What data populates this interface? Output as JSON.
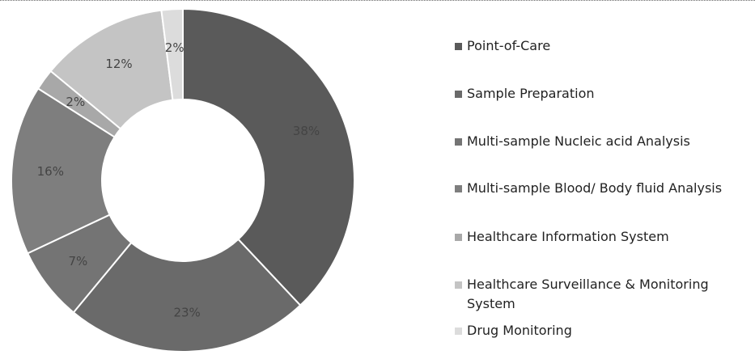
{
  "chart_data": {
    "type": "donut",
    "categories": [
      "Point-of-Care",
      "Sample Preparation",
      "Multi-sample Nucleic acid Analysis",
      "Multi-sample Blood/ Body fluid Analysis",
      "Healthcare Information System",
      "Healthcare Surveillance & Monitoring System",
      "Drug Monitoring"
    ],
    "values": [
      38,
      23,
      7,
      16,
      2,
      12,
      2
    ],
    "value_labels": [
      "38%",
      "23%",
      "7%",
      "16%",
      "2%",
      "12%",
      "2%"
    ],
    "colors": [
      "#5a5a5a",
      "#6a6a6a",
      "#747474",
      "#7e7e7e",
      "#a8a8a8",
      "#c4c4c4",
      "#dcdcdc"
    ],
    "legend": "right"
  }
}
